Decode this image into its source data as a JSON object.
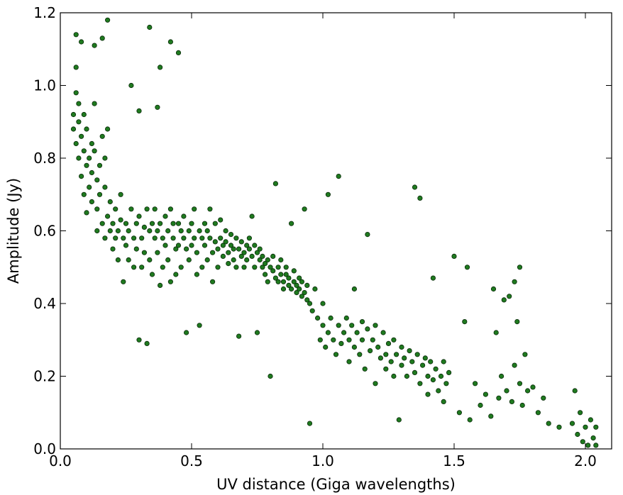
{
  "chart_data": {
    "type": "scatter",
    "title": "",
    "xlabel": "UV distance (Giga wavelengths)",
    "ylabel": "Amplitude (Jy)",
    "xlim": [
      0.0,
      2.1
    ],
    "ylim": [
      0.0,
      1.2
    ],
    "xticks": [
      "0.0",
      "0.5",
      "1.0",
      "1.5",
      "2.0"
    ],
    "yticks": [
      "0.0",
      "0.2",
      "0.4",
      "0.6",
      "0.8",
      "1.0",
      "1.2"
    ],
    "grid": false,
    "marker_color": "#1f7a1f",
    "marker_edge": "#0a2a0a",
    "series": [
      {
        "name": "",
        "points": [
          [
            0.05,
            0.92
          ],
          [
            0.05,
            0.88
          ],
          [
            0.06,
            1.14
          ],
          [
            0.06,
            1.05
          ],
          [
            0.06,
            0.98
          ],
          [
            0.06,
            0.84
          ],
          [
            0.07,
            0.95
          ],
          [
            0.07,
            0.8
          ],
          [
            0.07,
            0.9
          ],
          [
            0.08,
            1.12
          ],
          [
            0.08,
            0.86
          ],
          [
            0.08,
            0.75
          ],
          [
            0.09,
            0.82
          ],
          [
            0.09,
            0.92
          ],
          [
            0.09,
            0.7
          ],
          [
            0.1,
            0.78
          ],
          [
            0.1,
            0.88
          ],
          [
            0.1,
            0.65
          ],
          [
            0.11,
            0.8
          ],
          [
            0.11,
            0.72
          ],
          [
            0.12,
            0.84
          ],
          [
            0.12,
            0.76
          ],
          [
            0.12,
            0.68
          ],
          [
            0.13,
            1.11
          ],
          [
            0.13,
            0.95
          ],
          [
            0.13,
            0.82
          ],
          [
            0.14,
            0.74
          ],
          [
            0.14,
            0.66
          ],
          [
            0.14,
            0.6
          ],
          [
            0.15,
            0.78
          ],
          [
            0.15,
            0.7
          ],
          [
            0.16,
            1.13
          ],
          [
            0.16,
            0.86
          ],
          [
            0.16,
            0.62
          ],
          [
            0.17,
            0.72
          ],
          [
            0.17,
            0.8
          ],
          [
            0.17,
            0.58
          ],
          [
            0.18,
            1.18
          ],
          [
            0.18,
            0.88
          ],
          [
            0.18,
            0.64
          ],
          [
            0.19,
            0.68
          ],
          [
            0.19,
            0.6
          ],
          [
            0.2,
            0.62
          ],
          [
            0.2,
            0.55
          ],
          [
            0.21,
            0.58
          ],
          [
            0.21,
            0.66
          ],
          [
            0.22,
            0.6
          ],
          [
            0.22,
            0.52
          ],
          [
            0.23,
            0.7
          ],
          [
            0.23,
            0.63
          ],
          [
            0.24,
            0.58
          ],
          [
            0.24,
            0.46
          ],
          [
            0.25,
            0.62
          ],
          [
            0.25,
            0.56
          ],
          [
            0.26,
            0.6
          ],
          [
            0.26,
            0.52
          ],
          [
            0.27,
            1.0
          ],
          [
            0.27,
            0.66
          ],
          [
            0.28,
            0.58
          ],
          [
            0.28,
            0.5
          ],
          [
            0.29,
            0.62
          ],
          [
            0.29,
            0.55
          ],
          [
            0.3,
            0.93
          ],
          [
            0.3,
            0.64
          ],
          [
            0.3,
            0.3
          ],
          [
            0.31,
            0.58
          ],
          [
            0.31,
            0.5
          ],
          [
            0.32,
            0.61
          ],
          [
            0.32,
            0.54
          ],
          [
            0.33,
            0.29
          ],
          [
            0.33,
            0.66
          ],
          [
            0.34,
            1.16
          ],
          [
            0.34,
            0.6
          ],
          [
            0.34,
            0.52
          ],
          [
            0.35,
            0.62
          ],
          [
            0.35,
            0.48
          ],
          [
            0.36,
            0.58
          ],
          [
            0.36,
            0.66
          ],
          [
            0.37,
            0.94
          ],
          [
            0.37,
            0.6
          ],
          [
            0.37,
            0.54
          ],
          [
            0.38,
            1.05
          ],
          [
            0.38,
            0.62
          ],
          [
            0.38,
            0.45
          ],
          [
            0.39,
            0.58
          ],
          [
            0.39,
            0.5
          ],
          [
            0.4,
            0.64
          ],
          [
            0.4,
            0.56
          ],
          [
            0.41,
            0.6
          ],
          [
            0.41,
            0.52
          ],
          [
            0.42,
            1.12
          ],
          [
            0.42,
            0.66
          ],
          [
            0.42,
            0.46
          ],
          [
            0.43,
            0.58
          ],
          [
            0.43,
            0.62
          ],
          [
            0.44,
            0.55
          ],
          [
            0.44,
            0.48
          ],
          [
            0.45,
            1.09
          ],
          [
            0.45,
            0.62
          ],
          [
            0.45,
            0.56
          ],
          [
            0.46,
            0.6
          ],
          [
            0.46,
            0.5
          ],
          [
            0.47,
            0.58
          ],
          [
            0.47,
            0.64
          ],
          [
            0.48,
            0.55
          ],
          [
            0.48,
            0.32
          ],
          [
            0.49,
            0.6
          ],
          [
            0.49,
            0.52
          ],
          [
            0.5,
            0.62
          ],
          [
            0.5,
            0.56
          ],
          [
            0.51,
            0.58
          ],
          [
            0.51,
            0.66
          ],
          [
            0.52,
            0.54
          ],
          [
            0.52,
            0.48
          ],
          [
            0.53,
            0.6
          ],
          [
            0.53,
            0.34
          ],
          [
            0.54,
            0.58
          ],
          [
            0.54,
            0.5
          ],
          [
            0.55,
            0.62
          ],
          [
            0.55,
            0.56
          ],
          [
            0.56,
            0.6
          ],
          [
            0.56,
            0.52
          ],
          [
            0.57,
            0.58
          ],
          [
            0.57,
            0.66
          ],
          [
            0.58,
            0.54
          ],
          [
            0.58,
            0.46
          ],
          [
            0.59,
            0.57
          ],
          [
            0.59,
            0.62
          ],
          [
            0.6,
            0.55
          ],
          [
            0.6,
            0.5
          ],
          [
            0.61,
            0.58
          ],
          [
            0.61,
            0.63
          ],
          [
            0.62,
            0.53
          ],
          [
            0.62,
            0.56
          ],
          [
            0.63,
            0.57
          ],
          [
            0.63,
            0.6
          ],
          [
            0.64,
            0.54
          ],
          [
            0.64,
            0.51
          ],
          [
            0.65,
            0.56
          ],
          [
            0.65,
            0.59
          ],
          [
            0.66,
            0.52
          ],
          [
            0.66,
            0.55
          ],
          [
            0.67,
            0.58
          ],
          [
            0.67,
            0.5
          ],
          [
            0.68,
            0.55
          ],
          [
            0.68,
            0.31
          ],
          [
            0.69,
            0.53
          ],
          [
            0.69,
            0.57
          ],
          [
            0.7,
            0.54
          ],
          [
            0.7,
            0.5
          ],
          [
            0.71,
            0.56
          ],
          [
            0.71,
            0.52
          ],
          [
            0.72,
            0.55
          ],
          [
            0.72,
            0.58
          ],
          [
            0.73,
            0.53
          ],
          [
            0.73,
            0.64
          ],
          [
            0.74,
            0.5
          ],
          [
            0.74,
            0.56
          ],
          [
            0.75,
            0.54
          ],
          [
            0.75,
            0.32
          ],
          [
            0.76,
            0.52
          ],
          [
            0.76,
            0.55
          ],
          [
            0.77,
            0.5
          ],
          [
            0.77,
            0.53
          ],
          [
            0.78,
            0.51
          ],
          [
            0.78,
            0.48
          ],
          [
            0.79,
            0.52
          ],
          [
            0.79,
            0.46
          ],
          [
            0.8,
            0.2
          ],
          [
            0.8,
            0.5
          ],
          [
            0.81,
            0.49
          ],
          [
            0.81,
            0.53
          ],
          [
            0.82,
            0.73
          ],
          [
            0.82,
            0.47
          ],
          [
            0.83,
            0.5
          ],
          [
            0.83,
            0.46
          ],
          [
            0.84,
            0.48
          ],
          [
            0.84,
            0.52
          ],
          [
            0.85,
            0.46
          ],
          [
            0.85,
            0.44
          ],
          [
            0.86,
            0.48
          ],
          [
            0.86,
            0.5
          ],
          [
            0.87,
            0.45
          ],
          [
            0.87,
            0.47
          ],
          [
            0.88,
            0.62
          ],
          [
            0.88,
            0.44
          ],
          [
            0.89,
            0.46
          ],
          [
            0.89,
            0.49
          ],
          [
            0.9,
            0.43
          ],
          [
            0.9,
            0.45
          ],
          [
            0.91,
            0.47
          ],
          [
            0.91,
            0.44
          ],
          [
            0.92,
            0.42
          ],
          [
            0.92,
            0.46
          ],
          [
            0.93,
            0.66
          ],
          [
            0.93,
            0.43
          ],
          [
            0.94,
            0.45
          ],
          [
            0.94,
            0.41
          ],
          [
            0.95,
            0.07
          ],
          [
            0.95,
            0.4
          ],
          [
            0.96,
            0.38
          ],
          [
            0.97,
            0.44
          ],
          [
            0.98,
            0.36
          ],
          [
            0.99,
            0.3
          ],
          [
            1.0,
            0.34
          ],
          [
            1.0,
            0.4
          ],
          [
            1.01,
            0.28
          ],
          [
            1.02,
            0.7
          ],
          [
            1.02,
            0.32
          ],
          [
            1.03,
            0.36
          ],
          [
            1.04,
            0.3
          ],
          [
            1.05,
            0.26
          ],
          [
            1.06,
            0.75
          ],
          [
            1.06,
            0.34
          ],
          [
            1.07,
            0.29
          ],
          [
            1.08,
            0.32
          ],
          [
            1.09,
            0.36
          ],
          [
            1.1,
            0.24
          ],
          [
            1.1,
            0.3
          ],
          [
            1.11,
            0.34
          ],
          [
            1.12,
            0.28
          ],
          [
            1.12,
            0.44
          ],
          [
            1.13,
            0.32
          ],
          [
            1.14,
            0.26
          ],
          [
            1.15,
            0.35
          ],
          [
            1.15,
            0.3
          ],
          [
            1.16,
            0.22
          ],
          [
            1.17,
            0.33
          ],
          [
            1.17,
            0.59
          ],
          [
            1.18,
            0.27
          ],
          [
            1.19,
            0.3
          ],
          [
            1.2,
            0.18
          ],
          [
            1.2,
            0.34
          ],
          [
            1.21,
            0.28
          ],
          [
            1.22,
            0.25
          ],
          [
            1.23,
            0.32
          ],
          [
            1.24,
            0.26
          ],
          [
            1.24,
            0.22
          ],
          [
            1.25,
            0.29
          ],
          [
            1.26,
            0.24
          ],
          [
            1.27,
            0.3
          ],
          [
            1.27,
            0.2
          ],
          [
            1.28,
            0.26
          ],
          [
            1.29,
            0.08
          ],
          [
            1.3,
            0.28
          ],
          [
            1.3,
            0.23
          ],
          [
            1.31,
            0.25
          ],
          [
            1.32,
            0.2
          ],
          [
            1.33,
            0.27
          ],
          [
            1.34,
            0.24
          ],
          [
            1.35,
            0.72
          ],
          [
            1.35,
            0.21
          ],
          [
            1.36,
            0.26
          ],
          [
            1.37,
            0.69
          ],
          [
            1.37,
            0.18
          ],
          [
            1.38,
            0.23
          ],
          [
            1.39,
            0.25
          ],
          [
            1.4,
            0.2
          ],
          [
            1.4,
            0.15
          ],
          [
            1.41,
            0.24
          ],
          [
            1.42,
            0.47
          ],
          [
            1.42,
            0.19
          ],
          [
            1.43,
            0.22
          ],
          [
            1.44,
            0.16
          ],
          [
            1.45,
            0.2
          ],
          [
            1.46,
            0.24
          ],
          [
            1.46,
            0.13
          ],
          [
            1.47,
            0.18
          ],
          [
            1.48,
            0.21
          ],
          [
            1.5,
            0.53
          ],
          [
            1.52,
            0.1
          ],
          [
            1.54,
            0.35
          ],
          [
            1.55,
            0.5
          ],
          [
            1.56,
            0.08
          ],
          [
            1.58,
            0.18
          ],
          [
            1.6,
            0.12
          ],
          [
            1.62,
            0.15
          ],
          [
            1.64,
            0.09
          ],
          [
            1.65,
            0.44
          ],
          [
            1.66,
            0.32
          ],
          [
            1.67,
            0.14
          ],
          [
            1.68,
            0.2
          ],
          [
            1.69,
            0.41
          ],
          [
            1.7,
            0.16
          ],
          [
            1.71,
            0.42
          ],
          [
            1.72,
            0.13
          ],
          [
            1.73,
            0.46
          ],
          [
            1.73,
            0.23
          ],
          [
            1.74,
            0.35
          ],
          [
            1.75,
            0.18
          ],
          [
            1.75,
            0.5
          ],
          [
            1.76,
            0.12
          ],
          [
            1.77,
            0.26
          ],
          [
            1.78,
            0.16
          ],
          [
            1.8,
            0.17
          ],
          [
            1.82,
            0.1
          ],
          [
            1.84,
            0.14
          ],
          [
            1.86,
            0.07
          ],
          [
            1.9,
            0.06
          ],
          [
            1.95,
            0.07
          ],
          [
            1.96,
            0.16
          ],
          [
            1.97,
            0.04
          ],
          [
            1.98,
            0.1
          ],
          [
            1.99,
            0.02
          ],
          [
            2.0,
            0.06
          ],
          [
            2.01,
            0.01
          ],
          [
            2.02,
            0.08
          ],
          [
            2.03,
            0.03
          ],
          [
            2.04,
            0.06
          ],
          [
            2.04,
            0.01
          ]
        ]
      }
    ]
  }
}
